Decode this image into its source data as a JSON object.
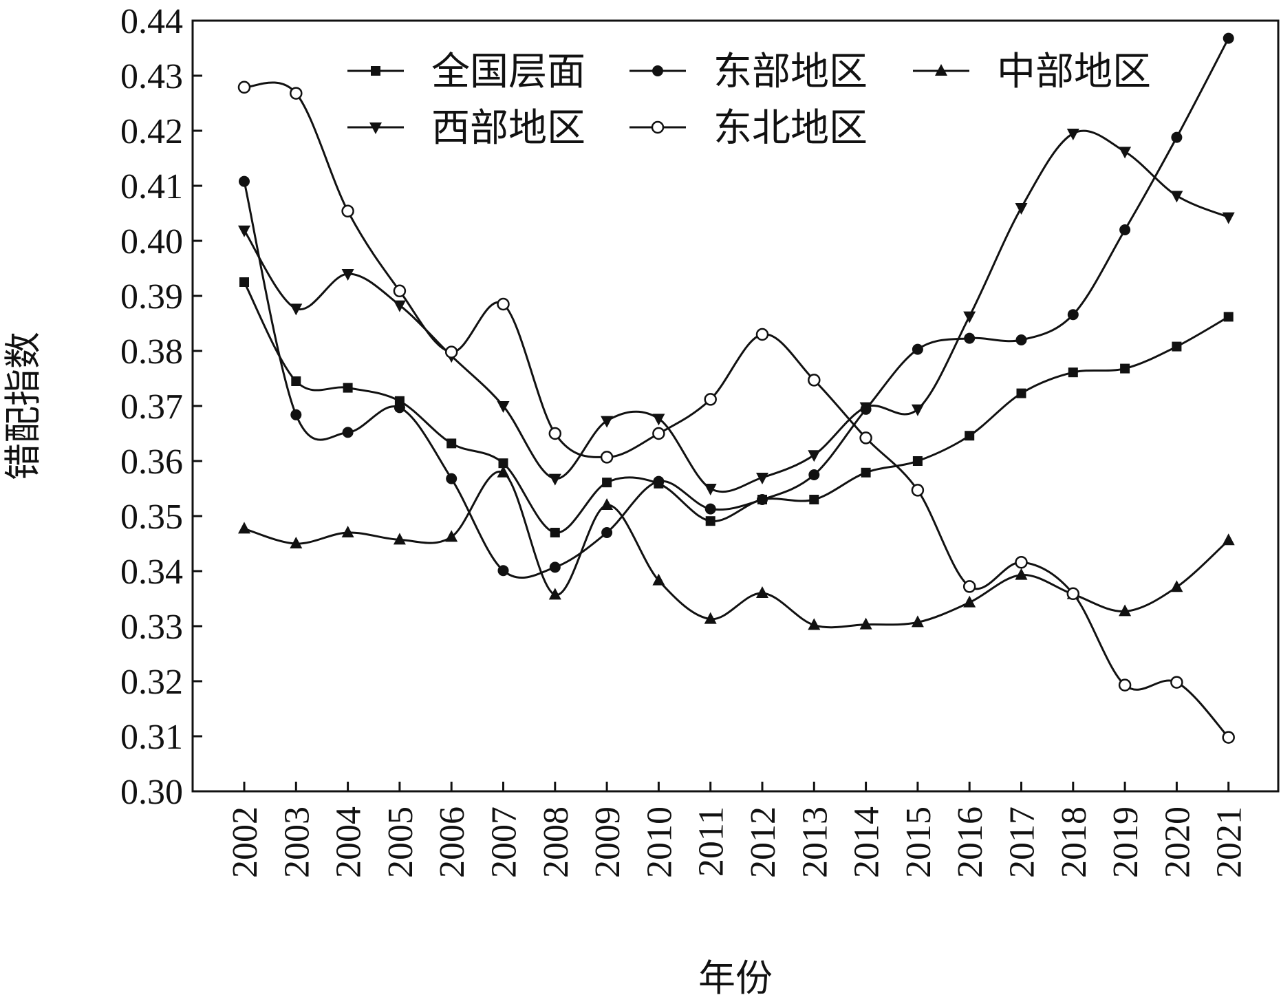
{
  "chart_data": {
    "type": "line",
    "title": "",
    "xlabel": "年份",
    "ylabel": "错配指数",
    "ylim": [
      0.3,
      0.44
    ],
    "yticks": [
      "0.30",
      "0.31",
      "0.32",
      "0.33",
      "0.34",
      "0.35",
      "0.36",
      "0.37",
      "0.38",
      "0.39",
      "0.40",
      "0.41",
      "0.42",
      "0.43",
      "0.44"
    ],
    "categories": [
      "2002",
      "2003",
      "2004",
      "2005",
      "2006",
      "2007",
      "2008",
      "2009",
      "2010",
      "2011",
      "2012",
      "2013",
      "2014",
      "2015",
      "2016",
      "2017",
      "2018",
      "2019",
      "2020",
      "2021"
    ],
    "grid": false,
    "legend_position": "top",
    "series": [
      {
        "name": "全国层面",
        "marker": "square-filled",
        "values": [
          0.3925,
          0.3745,
          0.3733,
          0.3709,
          0.3632,
          0.3596,
          0.347,
          0.3561,
          0.3559,
          0.3491,
          0.353,
          0.353,
          0.3579,
          0.36,
          0.3646,
          0.3723,
          0.3761,
          0.3768,
          0.3808,
          0.3862
        ]
      },
      {
        "name": "东部地区",
        "marker": "circle-filled",
        "values": [
          0.4108,
          0.3684,
          0.3652,
          0.3697,
          0.3568,
          0.3401,
          0.3407,
          0.347,
          0.3563,
          0.3513,
          0.353,
          0.3575,
          0.3694,
          0.3803,
          0.3823,
          0.382,
          0.3866,
          0.402,
          0.4188,
          0.4368
        ]
      },
      {
        "name": "中部地区",
        "marker": "triangle-up-filled",
        "values": [
          0.3477,
          0.345,
          0.347,
          0.3457,
          0.3462,
          0.3579,
          0.3357,
          0.352,
          0.3383,
          0.3313,
          0.336,
          0.3302,
          0.3303,
          0.3307,
          0.3343,
          0.3393,
          0.3358,
          0.3327,
          0.3371,
          0.3456
        ]
      },
      {
        "name": "西部地区",
        "marker": "triangle-down-filled",
        "values": [
          0.4019,
          0.3877,
          0.394,
          0.3883,
          0.3791,
          0.37,
          0.3568,
          0.3673,
          0.3677,
          0.355,
          0.357,
          0.3611,
          0.3698,
          0.3694,
          0.3863,
          0.406,
          0.4195,
          0.4162,
          0.4082,
          0.4043
        ]
      },
      {
        "name": "东北地区",
        "marker": "circle-open",
        "values": [
          0.4279,
          0.4268,
          0.4054,
          0.3909,
          0.3798,
          0.3885,
          0.365,
          0.3607,
          0.365,
          0.3712,
          0.383,
          0.3747,
          0.3642,
          0.3547,
          0.3372,
          0.3416,
          0.3359,
          0.3193,
          0.3198,
          0.3098
        ]
      }
    ]
  }
}
